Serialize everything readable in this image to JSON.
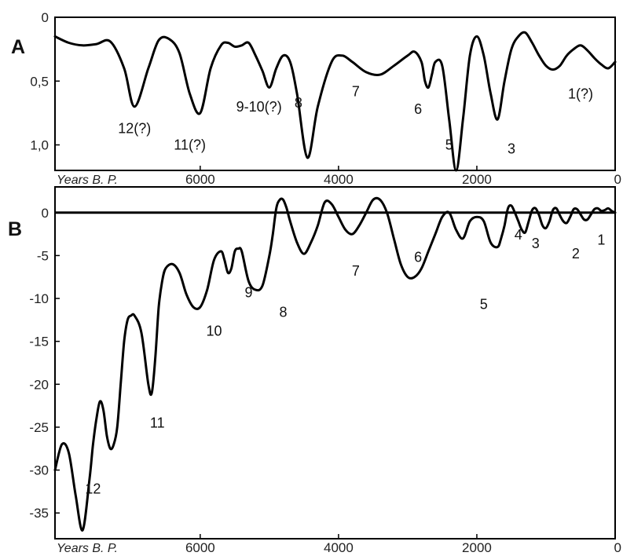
{
  "chart_data": [
    {
      "panel": "A",
      "type": "line",
      "xlabel": "Years B. P.",
      "xlim": [
        8100,
        0
      ],
      "ylim": [
        0,
        1.2
      ],
      "y_inverted": true,
      "xticks": [
        6000,
        4000,
        2000,
        0
      ],
      "yticks": [
        {
          "v": 0,
          "label": "0"
        },
        {
          "v": 0.5,
          "label": "0,5"
        },
        {
          "v": 1.0,
          "label": "1,0"
        }
      ],
      "x": [
        8100,
        7900,
        7700,
        7500,
        7300,
        7100,
        6950,
        6750,
        6600,
        6450,
        6300,
        6150,
        6000,
        5850,
        5700,
        5600,
        5500,
        5400,
        5300,
        5200,
        5100,
        5000,
        4900,
        4800,
        4700,
        4600,
        4450,
        4300,
        4100,
        3950,
        3800,
        3600,
        3400,
        3200,
        3000,
        2900,
        2800,
        2750,
        2700,
        2650,
        2600,
        2500,
        2400,
        2300,
        2200,
        2100,
        2000,
        1900,
        1800,
        1700,
        1600,
        1500,
        1400,
        1300,
        1200,
        1100,
        1000,
        900,
        800,
        700,
        600,
        500,
        400,
        300,
        200,
        100,
        0
      ],
      "y": [
        0.15,
        0.2,
        0.22,
        0.21,
        0.19,
        0.4,
        0.7,
        0.4,
        0.18,
        0.17,
        0.28,
        0.6,
        0.75,
        0.4,
        0.22,
        0.2,
        0.23,
        0.22,
        0.2,
        0.3,
        0.42,
        0.55,
        0.4,
        0.3,
        0.35,
        0.6,
        1.1,
        0.7,
        0.35,
        0.3,
        0.35,
        0.43,
        0.45,
        0.38,
        0.3,
        0.27,
        0.35,
        0.5,
        0.55,
        0.45,
        0.35,
        0.38,
        0.8,
        1.2,
        0.8,
        0.3,
        0.15,
        0.3,
        0.6,
        0.8,
        0.5,
        0.25,
        0.15,
        0.12,
        0.2,
        0.3,
        0.38,
        0.41,
        0.38,
        0.3,
        0.25,
        0.22,
        0.26,
        0.32,
        0.37,
        0.4,
        0.35
      ],
      "annotations": [
        {
          "text": "12(?)",
          "x": 6950,
          "y": 0.87
        },
        {
          "text": "11(?)",
          "x": 6150,
          "y": 1.0
        },
        {
          "text": "9-10(?)",
          "x": 5150,
          "y": 0.7
        },
        {
          "text": "8",
          "x": 4580,
          "y": 0.67
        },
        {
          "text": "7",
          "x": 3750,
          "y": 0.58
        },
        {
          "text": "6",
          "x": 2850,
          "y": 0.72
        },
        {
          "text": "5",
          "x": 2400,
          "y": 1.0
        },
        {
          "text": "3",
          "x": 1500,
          "y": 1.03
        },
        {
          "text": "1(?)",
          "x": 500,
          "y": 0.6
        }
      ]
    },
    {
      "panel": "B",
      "type": "line",
      "xlabel": "Years B. P.",
      "xlim": [
        8100,
        0
      ],
      "ylim": [
        -38,
        3
      ],
      "xticks": [
        6000,
        4000,
        2000,
        0
      ],
      "yticks": [
        {
          "v": 0,
          "label": "0"
        },
        {
          "v": -5,
          "label": "-5"
        },
        {
          "v": -10,
          "label": "-10"
        },
        {
          "v": -15,
          "label": "-15"
        },
        {
          "v": -20,
          "label": "-20"
        },
        {
          "v": -25,
          "label": "-25"
        },
        {
          "v": -30,
          "label": "-30"
        },
        {
          "v": -35,
          "label": "-35"
        }
      ],
      "zero_line": 0,
      "x": [
        8100,
        8000,
        7900,
        7800,
        7700,
        7600,
        7550,
        7500,
        7450,
        7400,
        7350,
        7300,
        7250,
        7200,
        7150,
        7100,
        7050,
        7000,
        6950,
        6850,
        6750,
        6700,
        6650,
        6600,
        6550,
        6500,
        6400,
        6300,
        6200,
        6100,
        6000,
        5900,
        5800,
        5700,
        5650,
        5600,
        5550,
        5500,
        5450,
        5400,
        5300,
        5200,
        5100,
        5000,
        4950,
        4900,
        4850,
        4800,
        4750,
        4700,
        4600,
        4500,
        4400,
        4300,
        4200,
        4100,
        4000,
        3900,
        3800,
        3700,
        3600,
        3500,
        3400,
        3300,
        3200,
        3100,
        3000,
        2900,
        2800,
        2700,
        2600,
        2500,
        2400,
        2300,
        2200,
        2100,
        2000,
        1900,
        1800,
        1700,
        1650,
        1600,
        1550,
        1500,
        1450,
        1400,
        1350,
        1300,
        1250,
        1200,
        1150,
        1100,
        1050,
        1000,
        950,
        900,
        850,
        800,
        750,
        700,
        650,
        600,
        550,
        500,
        450,
        400,
        350,
        300,
        250,
        200,
        150,
        100,
        50,
        0
      ],
      "y": [
        -30,
        -27,
        -28,
        -33,
        -37,
        -31,
        -27,
        -24,
        -22,
        -23,
        -26,
        -27.5,
        -27,
        -25,
        -20,
        -15,
        -12.5,
        -12,
        -12,
        -14,
        -20,
        -21,
        -17,
        -11,
        -8,
        -6.5,
        -6,
        -7,
        -9.5,
        -11,
        -11,
        -9,
        -5.5,
        -4.5,
        -5.5,
        -7,
        -6.5,
        -4.5,
        -4.2,
        -4.5,
        -8,
        -9,
        -8.5,
        -5,
        -2.5,
        0.5,
        1.5,
        1.5,
        0.5,
        -1,
        -3.5,
        -4.8,
        -3.5,
        -1.5,
        1.2,
        1,
        -0.5,
        -2,
        -2.5,
        -1.5,
        0,
        1.5,
        1.5,
        0,
        -3,
        -6,
        -7.5,
        -7.5,
        -6.5,
        -4.5,
        -2.5,
        -0.5,
        0,
        -2,
        -3,
        -1,
        -0.5,
        -1,
        -3.5,
        -4,
        -3,
        -1.5,
        0.5,
        0.8,
        0,
        -1,
        -2,
        -2.3,
        -1,
        0.3,
        0.5,
        -0.3,
        -1.5,
        -1.8,
        -1,
        0.3,
        0.5,
        -0.3,
        -1,
        -1.2,
        -0.5,
        0.4,
        0.4,
        -0.2,
        -0.8,
        -0.8,
        -0.2,
        0.4,
        0.5,
        0.2,
        0.3,
        0.5,
        0.2,
        0
      ],
      "annotations": [
        {
          "text": "12",
          "x": 7550,
          "y": -32.2
        },
        {
          "text": "11",
          "x": 6620,
          "y": -24.5
        },
        {
          "text": "10",
          "x": 5800,
          "y": -13.8
        },
        {
          "text": "9",
          "x": 5300,
          "y": -9.3
        },
        {
          "text": "8",
          "x": 4800,
          "y": -11.6
        },
        {
          "text": "7",
          "x": 3750,
          "y": -6.8
        },
        {
          "text": "6",
          "x": 2850,
          "y": -5.2
        },
        {
          "text": "5",
          "x": 1900,
          "y": -10.7
        },
        {
          "text": "4",
          "x": 1400,
          "y": -2.6
        },
        {
          "text": "3",
          "x": 1150,
          "y": -3.6
        },
        {
          "text": "2",
          "x": 570,
          "y": -4.8
        },
        {
          "text": "1",
          "x": 200,
          "y": -3.2
        }
      ]
    }
  ],
  "panel_labels": {
    "a": "A",
    "b": "B"
  }
}
